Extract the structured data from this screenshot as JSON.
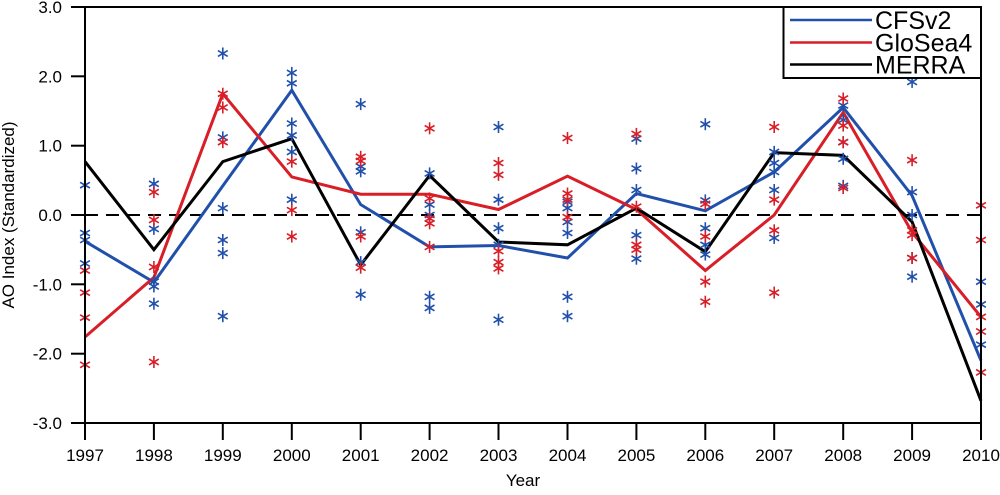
{
  "figure": {
    "xlabel": "Year",
    "ylabel": "AO Index (Standardized)",
    "background_color": "#ffffff",
    "axis_color": "#000000"
  },
  "legend": {
    "position": "top-right",
    "entries": [
      {
        "label": "CFSv2",
        "color": "#2150ab"
      },
      {
        "label": "GloSea4",
        "color": "#d81e26"
      },
      {
        "label": "MERRA",
        "color": "#000000"
      }
    ]
  },
  "chart_data": {
    "type": "line",
    "title": "",
    "xlabel": "Year",
    "ylabel": "AO Index (Standardized)",
    "x": [
      1997,
      1998,
      1999,
      2000,
      2001,
      2002,
      2003,
      2004,
      2005,
      2006,
      2007,
      2008,
      2009,
      2010
    ],
    "ylim": [
      -3.0,
      3.0
    ],
    "yticks": [
      3.0,
      2.0,
      1.0,
      0.0,
      -1.0,
      -2.0,
      -3.0
    ],
    "ytick_labels": [
      "3.0",
      "2.0",
      "1.0",
      "0.0",
      "-1.0",
      "-2.0",
      "-3.0"
    ],
    "zero_line": {
      "value": 0.0,
      "style": "dashed",
      "color": "#000000"
    },
    "grid": false,
    "legend_position": "top-right",
    "series": [
      {
        "name": "CFSv2",
        "color": "#2150ab",
        "values": [
          -0.38,
          -0.97,
          0.42,
          1.8,
          0.15,
          -0.46,
          -0.44,
          -0.62,
          0.31,
          0.06,
          0.62,
          1.55,
          0.28,
          -2.1
        ]
      },
      {
        "name": "GloSea4",
        "color": "#d81e26",
        "values": [
          -1.76,
          -0.9,
          1.75,
          0.55,
          0.3,
          0.3,
          0.08,
          0.56,
          0.08,
          -0.8,
          0.0,
          1.48,
          -0.25,
          -1.47
        ]
      },
      {
        "name": "MERRA",
        "color": "#000000",
        "values": [
          0.77,
          -0.5,
          0.77,
          1.1,
          -0.72,
          0.57,
          -0.39,
          -0.43,
          0.1,
          -0.53,
          0.9,
          0.86,
          -0.1,
          -2.68
        ]
      }
    ],
    "ensemble_markers": [
      {
        "series": "CFSv2",
        "color": "#2150ab",
        "marker": "asterisk",
        "values_by_year": [
          [
            0.43,
            -0.26,
            -0.36,
            -0.7
          ],
          [
            0.45,
            -0.2,
            -0.96,
            -1.03,
            -1.28
          ],
          [
            2.33,
            1.12,
            0.1,
            -0.36,
            -0.55,
            -1.46
          ],
          [
            2.05,
            1.9,
            1.32,
            1.15,
            0.91,
            0.22
          ],
          [
            1.6,
            0.7,
            0.63,
            -0.25,
            -0.68,
            -1.15
          ],
          [
            0.6,
            0.15,
            0.0,
            -1.18,
            -1.34
          ],
          [
            1.27,
            0.22,
            -0.19,
            -0.43,
            -1.51
          ],
          [
            0.19,
            0.1,
            -0.1,
            -0.26,
            -1.18,
            -1.46
          ],
          [
            1.1,
            0.67,
            0.36,
            -0.29,
            -0.63
          ],
          [
            1.31,
            0.21,
            -0.19,
            -0.43,
            -0.57
          ],
          [
            0.91,
            0.75,
            0.62,
            0.36,
            -0.33
          ],
          [
            1.58,
            1.37,
            1.05,
            0.81,
            0.42
          ],
          [
            1.92,
            0.33,
            0.0,
            -0.62,
            -0.89
          ],
          [
            -0.96,
            -1.29,
            -1.87
          ]
        ]
      },
      {
        "series": "GloSea4",
        "color": "#d81e26",
        "marker": "asterisk",
        "values_by_year": [
          [
            -0.8,
            -1.12,
            -1.48,
            -2.16
          ],
          [
            0.33,
            -0.07,
            -0.75,
            -2.12
          ],
          [
            1.75,
            1.55,
            1.05
          ],
          [
            0.77,
            0.07,
            -0.31
          ],
          [
            0.84,
            0.78,
            -0.31,
            -0.76
          ],
          [
            1.25,
            0.24,
            -0.05,
            -0.12,
            -0.46
          ],
          [
            0.75,
            0.58,
            -0.52,
            -0.68,
            -0.77
          ],
          [
            1.11,
            0.31,
            0.22,
            -0.03
          ],
          [
            1.17,
            0.12,
            -0.43,
            -0.5
          ],
          [
            0.16,
            -0.31,
            -0.96,
            -1.25
          ],
          [
            1.27,
            0.22,
            -0.22,
            -1.12
          ],
          [
            1.68,
            1.29,
            1.05,
            0.39
          ],
          [
            0.79,
            -0.22,
            -0.29,
            -0.62
          ],
          [
            0.14,
            -0.36,
            -1.47,
            -1.68,
            -2.27
          ]
        ]
      }
    ]
  }
}
